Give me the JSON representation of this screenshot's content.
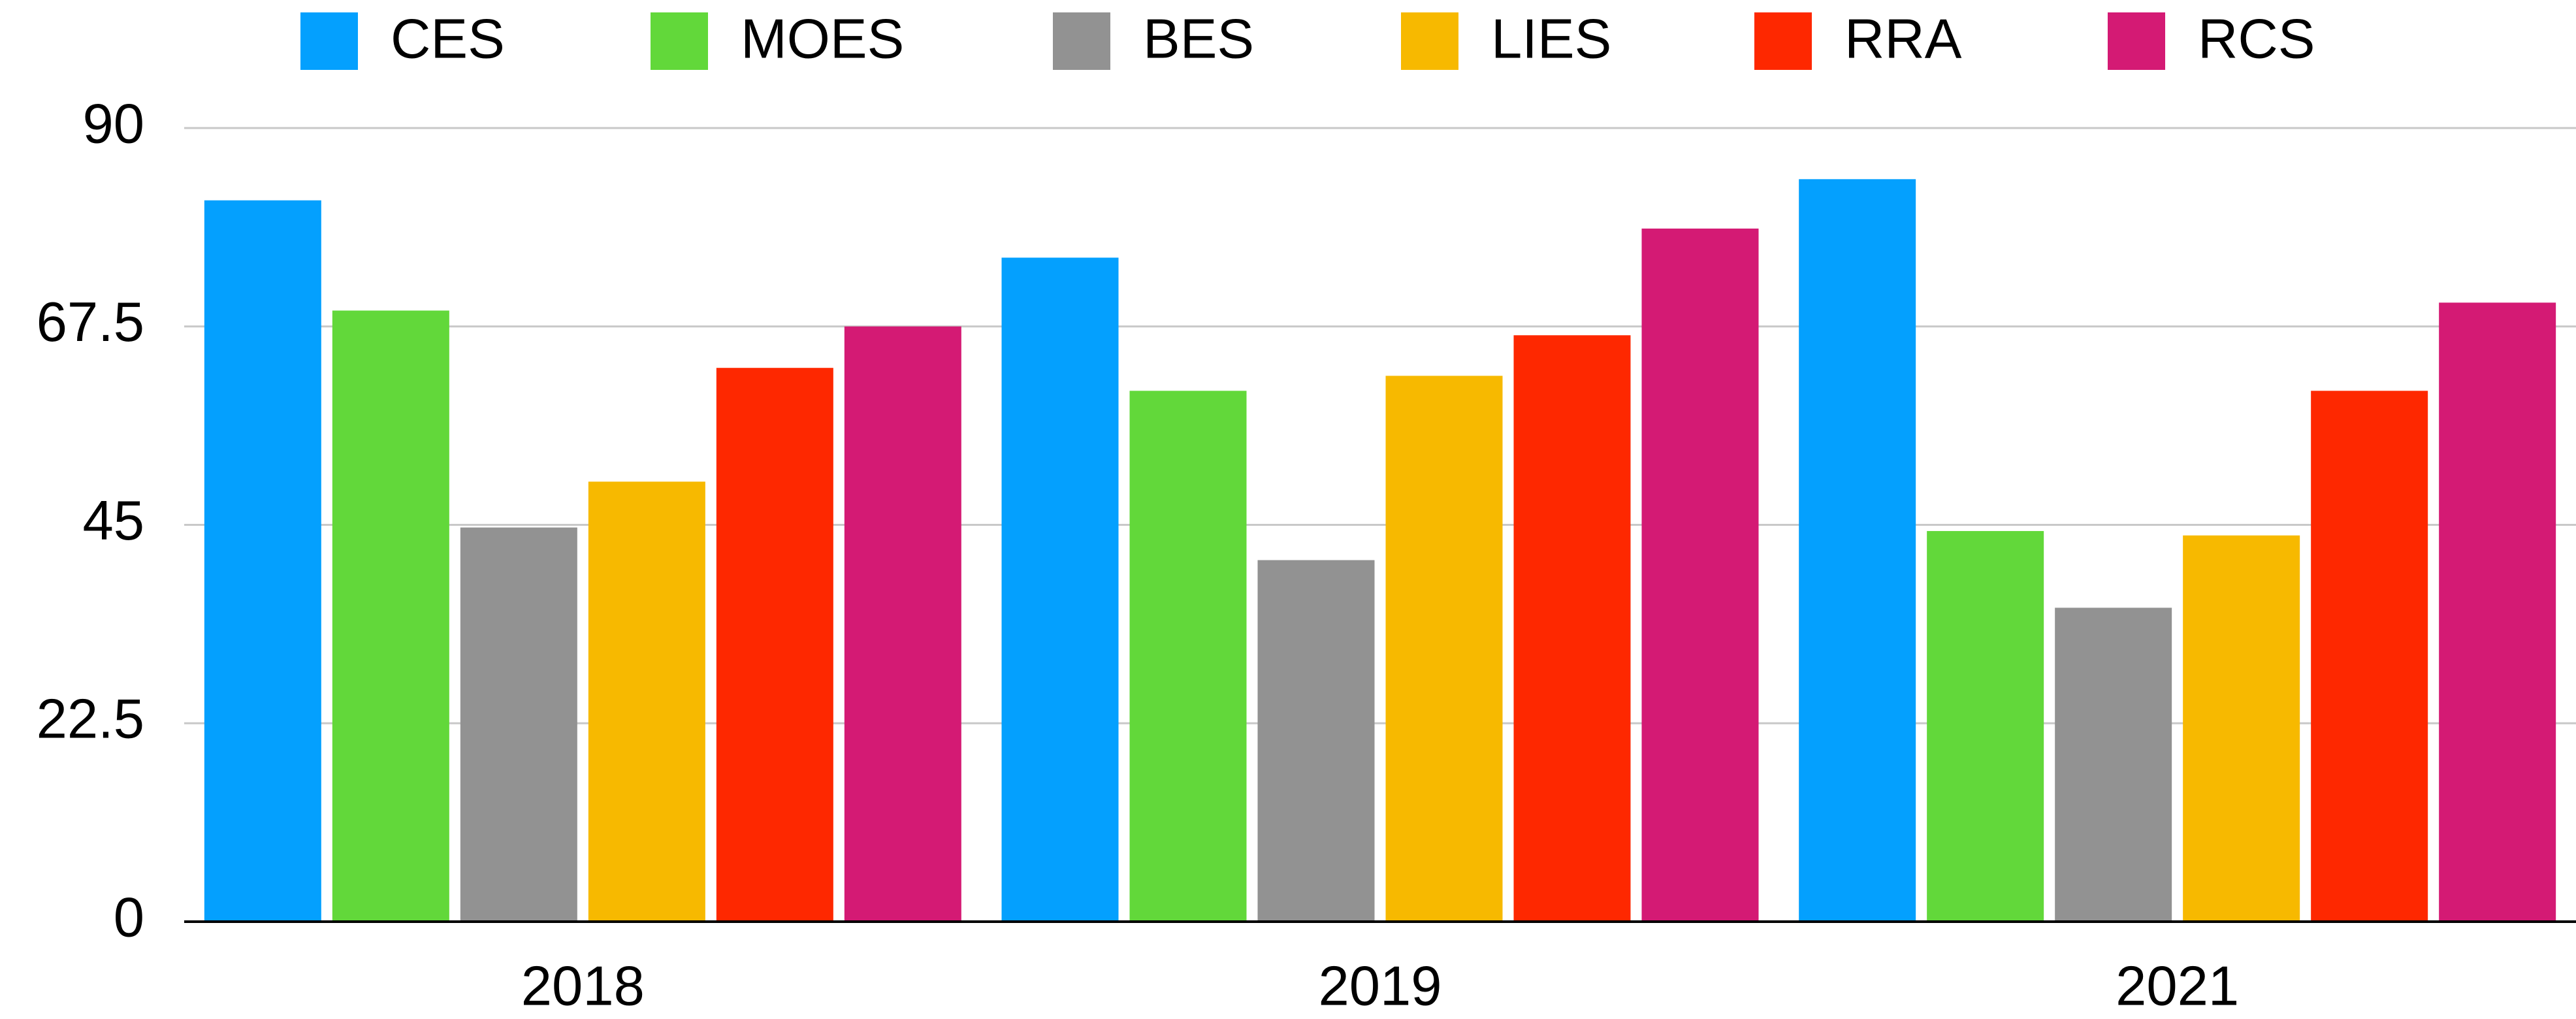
{
  "chart_data": {
    "type": "bar",
    "categories": [
      "2018",
      "2019",
      "2021"
    ],
    "series": [
      {
        "name": "CES",
        "color": "#04a0fe",
        "values": [
          81.8,
          75.3,
          84.2
        ]
      },
      {
        "name": "MOES",
        "color": "#62d83a",
        "values": [
          69.3,
          60.2,
          44.3
        ]
      },
      {
        "name": "BES",
        "color": "#929292",
        "values": [
          44.7,
          41,
          35.6
        ]
      },
      {
        "name": "LIES",
        "color": "#f7b900",
        "values": [
          49.9,
          61.9,
          43.8
        ]
      },
      {
        "name": "RRA",
        "color": "#fe2800",
        "values": [
          62.8,
          66.5,
          60.2
        ]
      },
      {
        "name": "RCS",
        "color": "#d41a74",
        "values": [
          67.5,
          78.6,
          70.2
        ]
      }
    ],
    "ylim": [
      0,
      90
    ],
    "yticks": [
      0,
      22.5,
      45,
      67.5,
      90
    ],
    "grid": true,
    "legend": "top"
  }
}
